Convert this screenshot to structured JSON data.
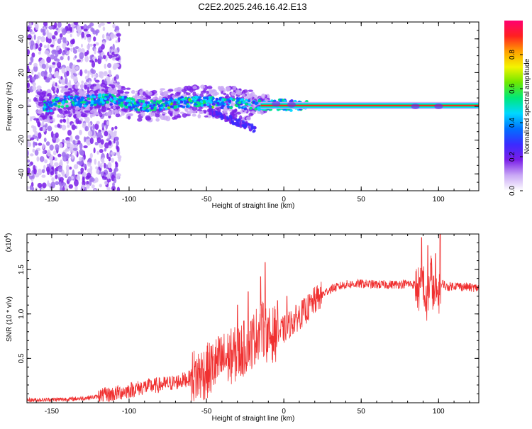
{
  "figure_title": "C2E2.2025.246.16.42.E13",
  "colors": {
    "snr_line": "#f03030",
    "axis": "#000000",
    "cb_stops": [
      "#ffffff",
      "#c9a8f5",
      "#7a1ee8",
      "#3a2bff",
      "#0070ff",
      "#00d8ff",
      "#00e87a",
      "#6ee800",
      "#f4f400",
      "#ffa000",
      "#ff2020",
      "#ff0070"
    ]
  },
  "chart_data": [
    {
      "type": "heatmap",
      "title": "",
      "xlabel": "Height of straight line (km)",
      "ylabel": "Frequency (Hz)",
      "xlim": [
        -166,
        126
      ],
      "ylim": [
        -50,
        50
      ],
      "xticks": [
        -150,
        -100,
        -50,
        0,
        50,
        100
      ],
      "xtick_labels": [
        "-150",
        "-100",
        "-50",
        "0",
        "50",
        "100"
      ],
      "yticks": [
        -40,
        -20,
        0,
        20,
        40
      ],
      "ytick_labels": [
        "-40",
        "-20",
        "0",
        "20",
        "40"
      ],
      "ridge": {
        "description_points_x": [
          -150,
          -140,
          -130,
          -120,
          -110,
          -100,
          -90,
          -80,
          -70,
          -60,
          -50,
          -40,
          -30,
          -25,
          -20,
          -10,
          0,
          10,
          50,
          85,
          90,
          100,
          126
        ],
        "description_points_y": [
          2,
          3,
          3,
          4,
          4,
          2,
          0,
          1,
          2,
          3,
          3,
          2,
          2,
          1,
          1,
          1,
          1,
          0,
          0,
          0,
          0,
          0,
          0
        ]
      },
      "colorbar": {
        "label": "Normalized spectral amplitude",
        "range": [
          0,
          1
        ],
        "ticks": [
          0.0,
          0.2,
          0.4,
          0.6,
          0.8
        ],
        "tick_labels": [
          "0.0",
          "0.2",
          "0.4",
          "0.6",
          "0.8"
        ]
      }
    },
    {
      "type": "line",
      "title": "",
      "xlabel": "Height of straight line (km)",
      "ylabel": "SNR (10 * v/v)",
      "y_multiplier": "(x10",
      "y_multiplier_exp": "4",
      "y_multiplier_close": ")",
      "xlim": [
        -166,
        126
      ],
      "ylim": [
        0,
        19000
      ],
      "xticks": [
        -150,
        -100,
        -50,
        0,
        50,
        100
      ],
      "xtick_labels": [
        "-150",
        "-100",
        "-50",
        "0",
        "50",
        "100"
      ],
      "yticks": [
        5000,
        10000,
        15000
      ],
      "ytick_labels": [
        "0.5",
        "1.0",
        "1.5"
      ],
      "series": [
        {
          "name": "SNR",
          "x": [
            -166,
            -150,
            -140,
            -130,
            -120,
            -110,
            -100,
            -90,
            -80,
            -70,
            -60,
            -50,
            -40,
            -30,
            -20,
            -15,
            -10,
            -5,
            0,
            5,
            10,
            15,
            20,
            25,
            30,
            40,
            50,
            60,
            70,
            80,
            85,
            88,
            90,
            92,
            95,
            98,
            100,
            103,
            105,
            110,
            115,
            120,
            126
          ],
          "values": [
            300,
            350,
            400,
            500,
            700,
            1000,
            1400,
            1800,
            2000,
            2300,
            2800,
            3500,
            4800,
            5500,
            7000,
            8500,
            7500,
            7800,
            8200,
            9000,
            9800,
            10500,
            11500,
            12200,
            12800,
            13300,
            13400,
            13300,
            13300,
            13400,
            13300,
            12500,
            14000,
            10500,
            14500,
            11000,
            12500,
            13500,
            13000,
            13200,
            13100,
            13000,
            12900
          ],
          "spikes": [
            {
              "x": -30,
              "y": 11000
            },
            {
              "x": -23,
              "y": 12500
            },
            {
              "x": -15,
              "y": 14200
            },
            {
              "x": -12,
              "y": 15800
            },
            {
              "x": -10,
              "y": 9000
            },
            {
              "x": -4,
              "y": 11500
            },
            {
              "x": 2,
              "y": 12000
            },
            {
              "x": 89,
              "y": 18600
            },
            {
              "x": 93,
              "y": 17700
            },
            {
              "x": 98,
              "y": 16800
            },
            {
              "x": 101,
              "y": 19000
            }
          ]
        }
      ]
    }
  ]
}
